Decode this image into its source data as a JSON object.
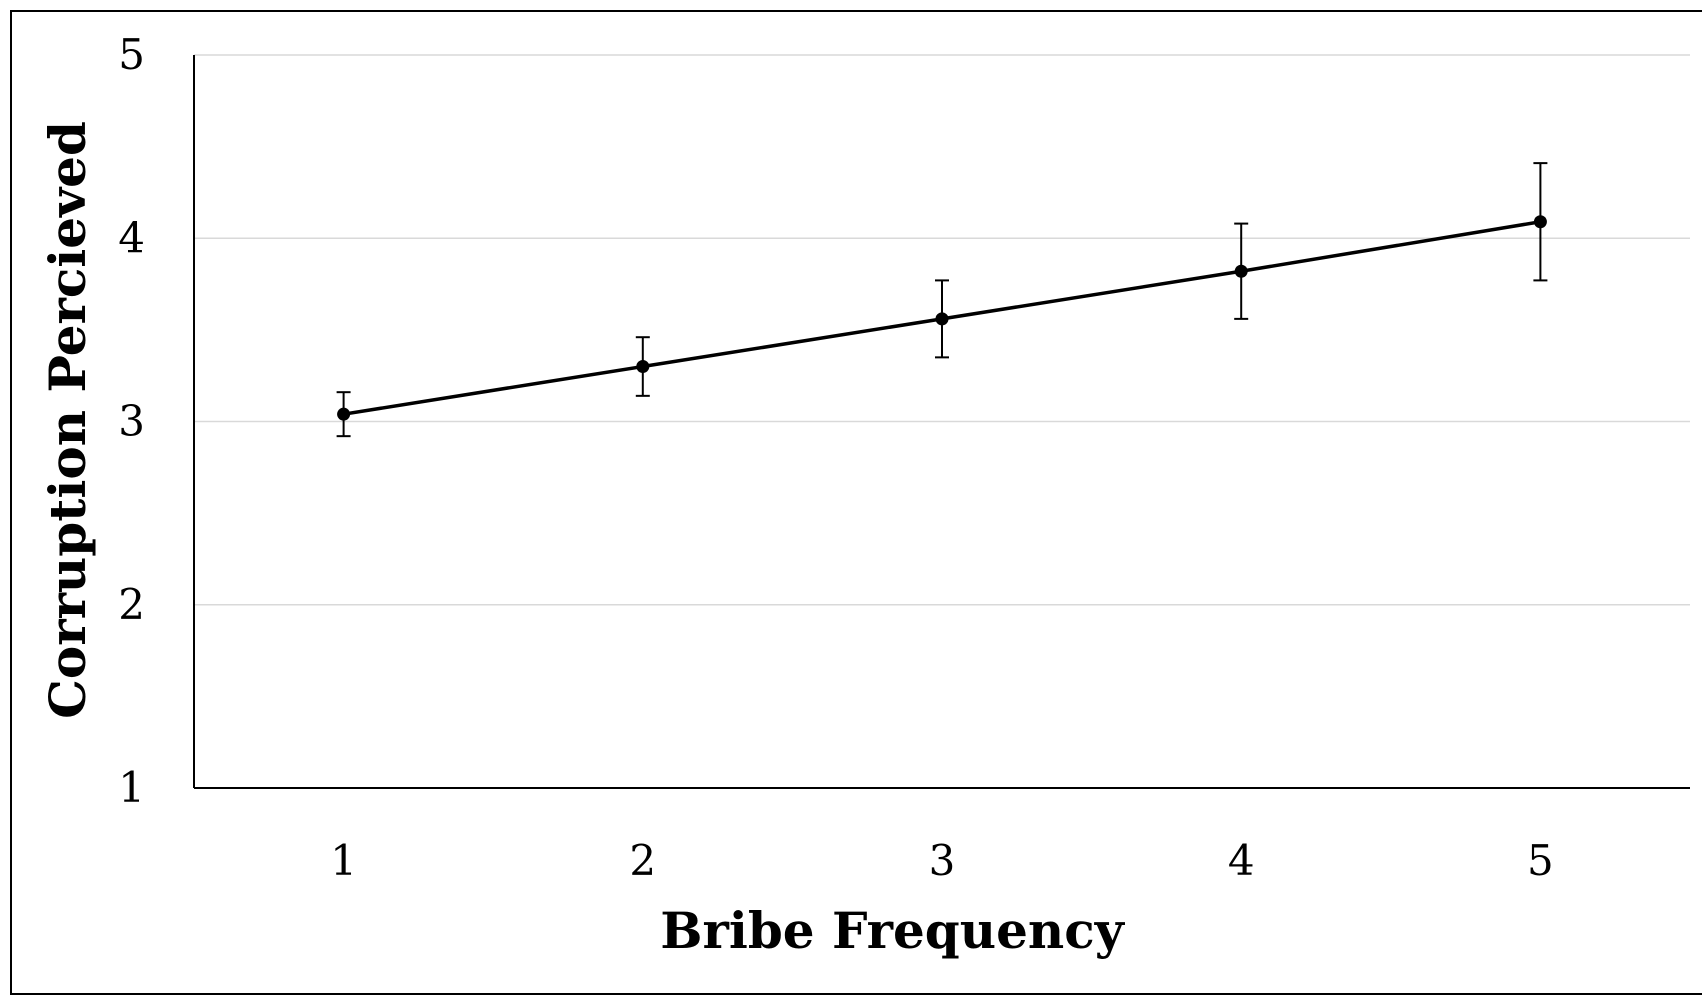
{
  "chart_data": {
    "type": "line",
    "x": [
      1,
      2,
      3,
      4,
      5
    ],
    "series": [
      {
        "values": [
          3.04,
          3.3,
          3.56,
          3.82,
          4.09
        ],
        "error": [
          0.12,
          0.16,
          0.21,
          0.26,
          0.32
        ]
      }
    ],
    "xlabel": "Bribe Frequency",
    "ylabel": "Corruption Percieved",
    "xlim": [
      0.5,
      5.5
    ],
    "ylim": [
      1,
      5
    ],
    "xticks": [
      "1",
      "2",
      "3",
      "4",
      "5"
    ],
    "yticks": [
      "1",
      "2",
      "3",
      "4",
      "5"
    ],
    "grid": true,
    "colors": {
      "line": "#000000",
      "grid": "#d9d9d9",
      "axis": "#000000"
    }
  }
}
